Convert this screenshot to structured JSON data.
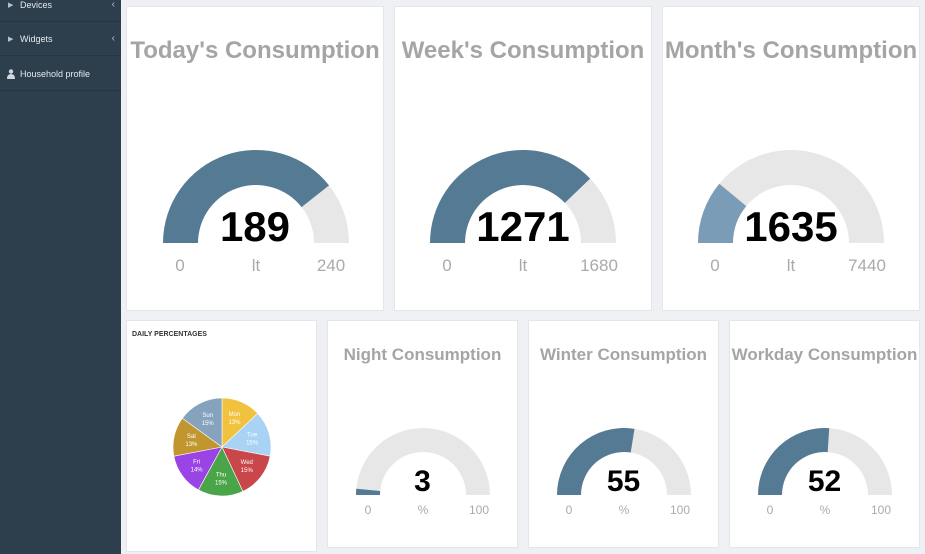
{
  "sidebar": {
    "items": [
      {
        "label": "Devices",
        "icon": "caret-right-icon"
      },
      {
        "label": "Widgets",
        "icon": "caret-right-icon"
      },
      {
        "label": "Household profile",
        "icon": "person-icon"
      }
    ]
  },
  "gauges": [
    {
      "title": "Today's Consumption",
      "value": 189,
      "min": 0,
      "max": 240,
      "unit": "lt",
      "fill_color": "#557b94"
    },
    {
      "title": "Week's Consumption",
      "value": 1271,
      "min": 0,
      "max": 1680,
      "unit": "lt",
      "fill_color": "#557b94"
    },
    {
      "title": "Month's Consumption",
      "value": 1635,
      "min": 0,
      "max": 7440,
      "unit": "lt",
      "fill_color": "#7a9cb6"
    },
    {
      "title": "Night Consumption",
      "value": 3,
      "min": 0,
      "max": 100,
      "unit": "%",
      "fill_color": "#557b94"
    },
    {
      "title": "Winter Consumption",
      "value": 55,
      "min": 0,
      "max": 100,
      "unit": "%",
      "fill_color": "#557b94"
    },
    {
      "title": "Workday Consumption",
      "value": 52,
      "min": 0,
      "max": 100,
      "unit": "%",
      "fill_color": "#557b94"
    }
  ],
  "chart_data": {
    "type": "pie",
    "title": "DAILY PERCENTAGES",
    "categories": [
      "Mon",
      "Tue",
      "Wed",
      "Thu",
      "Fri",
      "Sat",
      "Sun"
    ],
    "values": [
      13,
      15,
      15,
      15,
      14,
      13,
      15
    ],
    "labels": [
      "13%",
      "15%",
      "15%",
      "15%",
      "14%",
      "13%",
      "15%"
    ],
    "colors": [
      "#f0c23e",
      "#a8d3f4",
      "#c9464a",
      "#4aa548",
      "#9b44e6",
      "#c2962f",
      "#86a3bd"
    ]
  },
  "theme": {
    "track": "#e7e7e7",
    "sidebar_bg": "#2d3e4d"
  }
}
